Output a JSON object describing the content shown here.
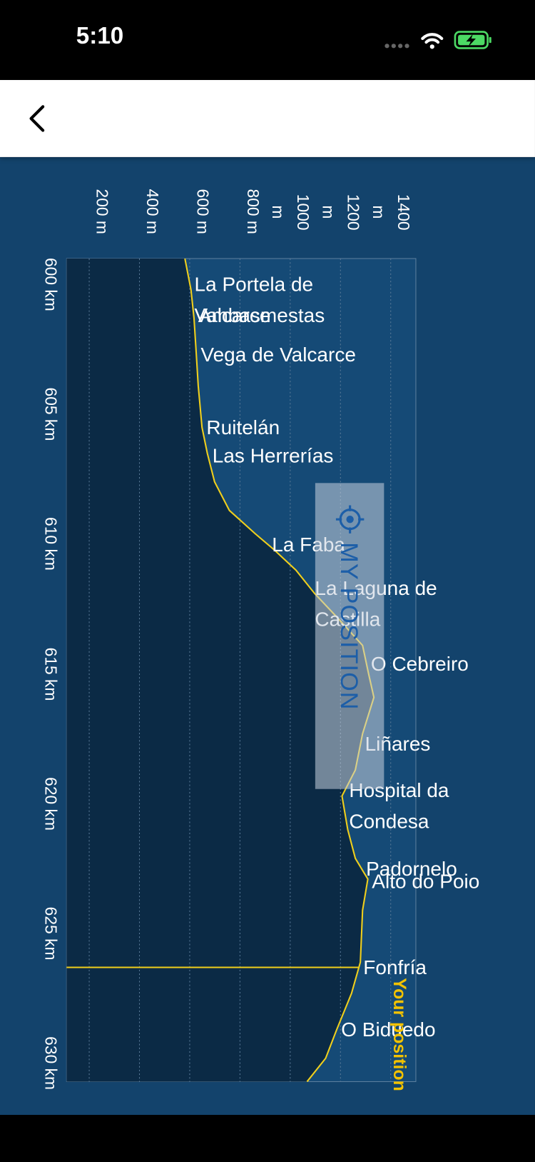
{
  "status_bar": {
    "time": "5:10"
  },
  "chart_data": {
    "type": "line",
    "orientation": "vertical",
    "x": [
      599,
      600.2,
      601.3,
      602.5,
      603.9,
      605.5,
      606.5,
      607.6,
      608.7,
      609.6,
      610.2,
      611.0,
      611.9,
      612.8,
      613.9,
      615.0,
      615.9,
      617.3,
      618.7,
      619.7,
      621.0,
      622.1,
      622.9,
      624.1,
      626.1,
      627.3,
      628.7,
      629.8,
      630.7
    ],
    "series": [
      {
        "color": "#f0cf1c",
        "values": [
          581,
          605,
          617,
          625,
          634,
          649,
          670,
          699,
          758,
          861,
          934,
          1023,
          1097,
          1185,
          1288,
          1312,
          1333,
          1288,
          1259,
          1206,
          1229,
          1259,
          1309,
          1288,
          1279,
          1244,
          1185,
          1141,
          1067
        ]
      }
    ],
    "xlim": [
      599,
      630.7
    ],
    "xticks": [
      {
        "value": 600,
        "label": "600 km"
      },
      {
        "value": 605,
        "label": "605 km"
      },
      {
        "value": 610,
        "label": "610 km"
      },
      {
        "value": 615,
        "label": "615 km"
      },
      {
        "value": 620,
        "label": "620 km"
      },
      {
        "value": 625,
        "label": "625 km"
      },
      {
        "value": 630,
        "label": "630 km"
      }
    ],
    "ylim": [
      110,
      1500
    ],
    "yticks": [
      {
        "value": 200,
        "label": "200 m"
      },
      {
        "value": 400,
        "label": "400 m"
      },
      {
        "value": 600,
        "label": "600 m"
      },
      {
        "value": 800,
        "label": "800 m"
      },
      {
        "value": 1000,
        "label": "1000 m"
      },
      {
        "value": 1200,
        "label": "1200 m"
      },
      {
        "value": 1400,
        "label": "1400 m"
      }
    ],
    "grid": true,
    "annotations": [
      {
        "text": "La Portela de Valcarce",
        "x": 600.0
      },
      {
        "text": "Ambasmestas",
        "x": 601.2
      },
      {
        "text": "Vega de Valcarce",
        "x": 602.7
      },
      {
        "text": "Ruitelán",
        "x": 605.5
      },
      {
        "text": "Las Herrerías",
        "x": 606.6
      },
      {
        "text": "La Faba",
        "x": 610.0
      },
      {
        "text": "La Laguna de Castilla",
        "x": 611.7
      },
      {
        "text": "O Cebreiro",
        "x": 614.6
      },
      {
        "text": "Liñares",
        "x": 617.7
      },
      {
        "text": "Hospital da Condesa",
        "x": 619.5
      },
      {
        "text": "Padornelo",
        "x": 622.5
      },
      {
        "text": "Alto do Poio",
        "x": 623.0
      },
      {
        "text": "Fonfría",
        "x": 626.3
      },
      {
        "text": "O Biduedo",
        "x": 628.7
      }
    ],
    "position": {
      "x": 626.3,
      "label": "Your position"
    }
  },
  "button": {
    "label": "MY POSITION"
  }
}
